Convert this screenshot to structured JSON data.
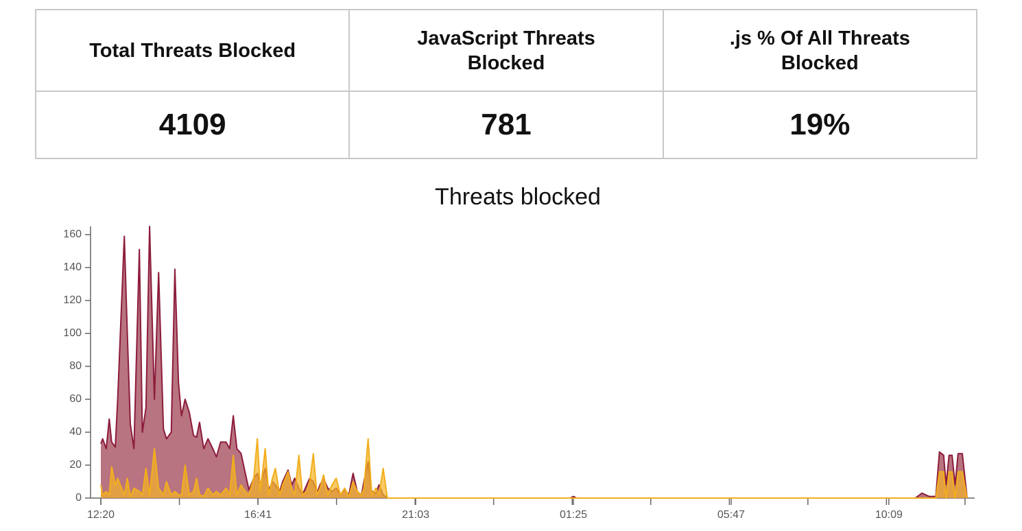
{
  "stats": {
    "headers": [
      "Total Threats Blocked",
      "JavaScript Threats Blocked",
      ".js % Of All Threats Blocked"
    ],
    "values": [
      "4109",
      "781",
      "19%"
    ]
  },
  "chart_data": {
    "type": "area",
    "title": "Threats blocked",
    "x": [
      "12:20",
      "12:23",
      "12:29",
      "12:34",
      "12:38",
      "12:44",
      "12:48",
      "12:59",
      "13:04",
      "13:09",
      "13:15",
      "13:24",
      "13:29",
      "13:35",
      "13:41",
      "13:49",
      "13:56",
      "14:04",
      "14:09",
      "14:17",
      "14:23",
      "14:29",
      "14:34",
      "14:40",
      "14:47",
      "14:54",
      "14:59",
      "15:04",
      "15:11",
      "15:18",
      "15:26",
      "15:32",
      "15:39",
      "15:48",
      "15:54",
      "16:00",
      "16:06",
      "16:13",
      "16:20",
      "16:26",
      "16:34",
      "16:40",
      "16:45",
      "16:53",
      "16:59",
      "17:05",
      "17:10",
      "17:17",
      "17:22",
      "17:31",
      "17:37",
      "17:42",
      "17:49",
      "17:55",
      "18:02",
      "18:07",
      "18:13",
      "18:19",
      "18:24",
      "18:30",
      "18:37",
      "18:44",
      "18:51",
      "18:58",
      "19:05",
      "19:12",
      "19:19",
      "19:26",
      "19:33",
      "19:37",
      "19:44",
      "19:50",
      "19:57",
      "20:02",
      "20:09",
      "20:16",
      "21:03",
      "01:20",
      "01:25",
      "01:30",
      "10:53",
      "11:04",
      "11:16",
      "11:27",
      "11:33",
      "11:40",
      "11:44",
      "11:49",
      "11:54",
      "11:59",
      "12:04",
      "12:11",
      "12:19"
    ],
    "series": [
      {
        "color": "#8c1c3c",
        "values": [
          33,
          36,
          30,
          48,
          34,
          31,
          60,
          159,
          100,
          45,
          30,
          151,
          40,
          55,
          165,
          60,
          137,
          42,
          36,
          40,
          139,
          70,
          50,
          60,
          52,
          38,
          37,
          46,
          30,
          36,
          30,
          25,
          34,
          34,
          30,
          50,
          30,
          27,
          15,
          5,
          12,
          15,
          8,
          18,
          5,
          10,
          8,
          4,
          10,
          17,
          8,
          12,
          6,
          2,
          8,
          12,
          10,
          3,
          8,
          12,
          6,
          4,
          6,
          2,
          5,
          2,
          15,
          4,
          2,
          10,
          22,
          4,
          3,
          8,
          2,
          0,
          0,
          0,
          1,
          0,
          0,
          3,
          1,
          1,
          28,
          26,
          8,
          26,
          26,
          8,
          27,
          27,
          0
        ]
      },
      {
        "color": "#f2ae1c",
        "values": [
          8,
          2,
          4,
          2,
          19,
          8,
          12,
          2,
          12,
          1,
          6,
          4,
          2,
          18,
          2,
          30,
          6,
          2,
          10,
          2,
          4,
          2,
          2,
          20,
          2,
          4,
          12,
          2,
          1,
          6,
          2,
          4,
          2,
          6,
          2,
          26,
          2,
          8,
          4,
          2,
          12,
          36,
          4,
          30,
          2,
          12,
          18,
          2,
          8,
          16,
          6,
          2,
          26,
          2,
          4,
          10,
          27,
          2,
          6,
          14,
          2,
          8,
          12,
          2,
          6,
          1,
          10,
          4,
          2,
          6,
          36,
          2,
          6,
          2,
          18,
          0,
          0,
          0,
          0,
          0,
          0,
          0,
          0,
          0,
          16,
          16,
          0,
          16,
          16,
          0,
          16,
          16,
          0
        ]
      }
    ],
    "xlim": [
      "12:20",
      "12:19"
    ],
    "xticks": [
      "12:20",
      "16:41",
      "21:03",
      "01:25",
      "05:47",
      "10:09"
    ],
    "ylim": [
      0,
      165
    ],
    "yticks": [
      0,
      20,
      40,
      60,
      80,
      100,
      120,
      140,
      160
    ]
  }
}
